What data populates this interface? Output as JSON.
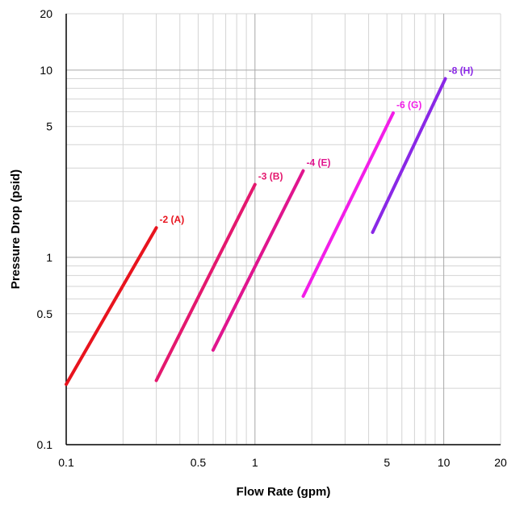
{
  "chart_data": {
    "type": "line",
    "title": "",
    "xlabel": "Flow Rate (gpm)",
    "ylabel": "Pressure Drop (psid)",
    "x_scale": "log",
    "y_scale": "log",
    "xlim": [
      0.1,
      20
    ],
    "ylim": [
      0.1,
      20
    ],
    "grid": true,
    "x_ticks": [
      {
        "value": 0.1,
        "label": "0.1"
      },
      {
        "value": 0.5,
        "label": "0.5"
      },
      {
        "value": 1,
        "label": "1"
      },
      {
        "value": 5,
        "label": "5"
      },
      {
        "value": 10,
        "label": "10"
      },
      {
        "value": 20,
        "label": "20"
      }
    ],
    "y_ticks": [
      {
        "value": 0.1,
        "label": "0.1"
      },
      {
        "value": 0.5,
        "label": "0.5"
      },
      {
        "value": 1,
        "label": "1"
      },
      {
        "value": 5,
        "label": "5"
      },
      {
        "value": 10,
        "label": "10"
      },
      {
        "value": 20,
        "label": "20"
      }
    ],
    "series": [
      {
        "name": "-2 (A)",
        "color": "#e8141e",
        "x": [
          0.1,
          0.3
        ],
        "y": [
          0.21,
          1.44
        ]
      },
      {
        "name": "-3 (B)",
        "color": "#e4186e",
        "x": [
          0.3,
          1.0
        ],
        "y": [
          0.22,
          2.45
        ]
      },
      {
        "name": "-4 (E)",
        "color": "#e0158e",
        "x": [
          0.6,
          1.8
        ],
        "y": [
          0.32,
          2.9
        ]
      },
      {
        "name": "-6 (G)",
        "color": "#f21ee8",
        "x": [
          1.8,
          5.4
        ],
        "y": [
          0.62,
          5.9
        ]
      },
      {
        "name": "-8 (H)",
        "color": "#8a28e6",
        "x": [
          4.2,
          10.2
        ],
        "y": [
          1.36,
          9.0
        ]
      }
    ]
  }
}
